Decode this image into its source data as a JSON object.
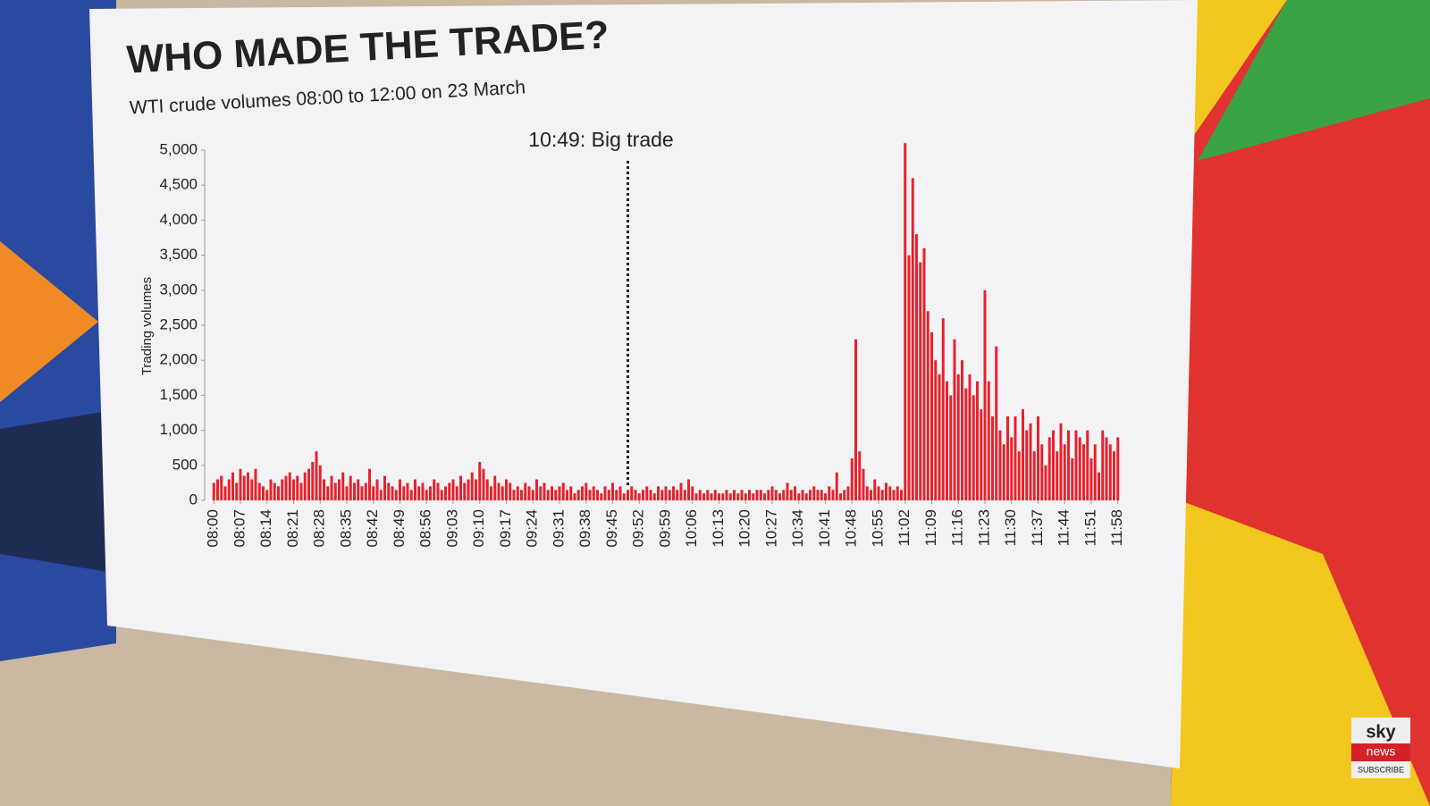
{
  "chart_data": {
    "type": "bar",
    "title": "WHO MADE THE TRADE?",
    "subtitle": "WTI crude volumes 08:00 to 12:00 on 23 March",
    "ylabel": "Trading volumes",
    "color": "#e8202a",
    "annotations": [
      {
        "text": "10:49: Big trade",
        "x": 109
      }
    ],
    "xlim": [
      -1,
      239
    ],
    "ylim": [
      0,
      5000
    ],
    "yticks": [
      0,
      500,
      {
        "value": 1000,
        "label": "1,000"
      },
      {
        "value": 1500,
        "label": "1,500"
      },
      {
        "value": 2000,
        "label": "2,000"
      },
      {
        "value": 2500,
        "label": "2,500"
      },
      {
        "value": 3000,
        "label": "3,000"
      },
      {
        "value": 3500,
        "label": "3,500"
      },
      {
        "value": 4000,
        "label": "4,000"
      },
      {
        "value": 4500,
        "label": "4,500"
      },
      {
        "value": 5000,
        "label": "5,000"
      }
    ],
    "xticks": [
      {
        "value": 0,
        "label": "08:00"
      },
      {
        "value": 7,
        "label": "08:07"
      },
      {
        "value": 14,
        "label": "08:14"
      },
      {
        "value": 21,
        "label": "08:21"
      },
      {
        "value": 28,
        "label": "08:28"
      },
      {
        "value": 35,
        "label": "08:35"
      },
      {
        "value": 42,
        "label": "08:42"
      },
      {
        "value": 49,
        "label": "08:49"
      },
      {
        "value": 56,
        "label": "08:56"
      },
      {
        "value": 63,
        "label": "09:03"
      },
      {
        "value": 70,
        "label": "09:10"
      },
      {
        "value": 77,
        "label": "09:17"
      },
      {
        "value": 84,
        "label": "09:24"
      },
      {
        "value": 91,
        "label": "09:31"
      },
      {
        "value": 98,
        "label": "09:38"
      },
      {
        "value": 105,
        "label": "09:45"
      },
      {
        "value": 112,
        "label": "09:52"
      },
      {
        "value": 119,
        "label": "09:59"
      },
      {
        "value": 126,
        "label": "10:06"
      },
      {
        "value": 133,
        "label": "10:13"
      },
      {
        "value": 140,
        "label": "10:20"
      },
      {
        "value": 147,
        "label": "10:27"
      },
      {
        "value": 154,
        "label": "10:34"
      },
      {
        "value": 161,
        "label": "10:41"
      },
      {
        "value": 168,
        "label": "10:48"
      },
      {
        "value": 175,
        "label": "10:55"
      },
      {
        "value": 182,
        "label": "11:02"
      },
      {
        "value": 189,
        "label": "11:09"
      },
      {
        "value": 196,
        "label": "11:16"
      },
      {
        "value": 203,
        "label": "11:23"
      },
      {
        "value": 210,
        "label": "11:30"
      },
      {
        "value": 217,
        "label": "11:37"
      },
      {
        "value": 224,
        "label": "11:44"
      },
      {
        "value": 231,
        "label": "11:51"
      },
      {
        "value": 238,
        "label": "11:58"
      }
    ],
    "x": [
      0,
      1,
      2,
      3,
      4,
      5,
      6,
      7,
      8,
      9,
      10,
      11,
      12,
      13,
      14,
      15,
      16,
      17,
      18,
      19,
      20,
      21,
      22,
      23,
      24,
      25,
      26,
      27,
      28,
      29,
      30,
      31,
      32,
      33,
      34,
      35,
      36,
      37,
      38,
      39,
      40,
      41,
      42,
      43,
      44,
      45,
      46,
      47,
      48,
      49,
      50,
      51,
      52,
      53,
      54,
      55,
      56,
      57,
      58,
      59,
      60,
      61,
      62,
      63,
      64,
      65,
      66,
      67,
      68,
      69,
      70,
      71,
      72,
      73,
      74,
      75,
      76,
      77,
      78,
      79,
      80,
      81,
      82,
      83,
      84,
      85,
      86,
      87,
      88,
      89,
      90,
      91,
      92,
      93,
      94,
      95,
      96,
      97,
      98,
      99,
      100,
      101,
      102,
      103,
      104,
      105,
      106,
      107,
      108,
      109,
      110,
      111,
      112,
      113,
      114,
      115,
      116,
      117,
      118,
      119,
      120,
      121,
      122,
      123,
      124,
      125,
      126,
      127,
      128,
      129,
      130,
      131,
      132,
      133,
      134,
      135,
      136,
      137,
      138,
      139,
      140,
      141,
      142,
      143,
      144,
      145,
      146,
      147,
      148,
      149,
      150,
      151,
      152,
      153,
      154,
      155,
      156,
      157,
      158,
      159,
      160,
      161,
      162,
      163,
      164,
      165,
      166,
      167,
      168,
      169,
      170,
      171,
      172,
      173,
      174,
      175,
      176,
      177,
      178,
      179,
      180,
      181,
      182,
      183,
      184,
      185,
      186,
      187,
      188,
      189,
      190,
      191,
      192,
      193,
      194,
      195,
      196,
      197,
      198,
      199,
      200,
      201,
      202,
      203,
      204,
      205,
      206,
      207,
      208,
      209,
      210,
      211,
      212,
      213,
      214,
      215,
      216,
      217,
      218,
      219,
      220,
      221,
      222,
      223,
      224,
      225,
      226,
      227,
      228,
      229,
      230,
      231,
      232,
      233,
      234,
      235,
      236,
      237,
      238
    ],
    "values": [
      250,
      300,
      350,
      200,
      300,
      400,
      250,
      450,
      350,
      400,
      300,
      450,
      250,
      200,
      150,
      300,
      250,
      200,
      300,
      350,
      400,
      300,
      350,
      250,
      400,
      450,
      550,
      700,
      500,
      300,
      200,
      350,
      250,
      300,
      400,
      200,
      350,
      250,
      300,
      200,
      250,
      450,
      200,
      300,
      150,
      350,
      250,
      200,
      150,
      300,
      200,
      250,
      150,
      300,
      200,
      250,
      150,
      200,
      300,
      250,
      150,
      200,
      250,
      300,
      200,
      350,
      250,
      300,
      400,
      300,
      550,
      450,
      300,
      200,
      350,
      250,
      200,
      300,
      250,
      150,
      200,
      150,
      250,
      200,
      150,
      300,
      200,
      250,
      150,
      200,
      150,
      200,
      250,
      150,
      200,
      100,
      150,
      200,
      250,
      150,
      200,
      150,
      100,
      200,
      150,
      250,
      150,
      200,
      100,
      150,
      200,
      150,
      100,
      150,
      200,
      150,
      100,
      200,
      150,
      200,
      150,
      200,
      150,
      250,
      150,
      300,
      200,
      100,
      150,
      100,
      150,
      100,
      150,
      100,
      100,
      150,
      100,
      150,
      100,
      150,
      100,
      150,
      100,
      150,
      150,
      100,
      150,
      200,
      150,
      100,
      150,
      250,
      150,
      200,
      100,
      150,
      100,
      150,
      200,
      150,
      150,
      100,
      200,
      150,
      400,
      100,
      150,
      200,
      600,
      2300,
      700,
      450,
      200,
      150,
      300,
      200,
      150,
      250,
      200,
      150,
      200,
      150,
      5100,
      3500,
      4600,
      3800,
      3400,
      3600,
      2700,
      2400,
      2000,
      1800,
      2600,
      1700,
      1500,
      2300,
      1800,
      2000,
      1600,
      1800,
      1500,
      1700,
      1300,
      3000,
      1700,
      1200,
      2200,
      1000,
      800,
      1200,
      900,
      1200,
      700,
      1300,
      1000,
      1100,
      700,
      1200,
      800,
      500,
      900,
      1000,
      700,
      1100,
      800,
      1000,
      600,
      1000,
      900,
      800,
      1000,
      600,
      800,
      400,
      1000,
      900,
      800,
      700,
      900
    ]
  },
  "logo": {
    "brand": "sky",
    "sub": "news",
    "cta": "SUBSCRIBE"
  }
}
